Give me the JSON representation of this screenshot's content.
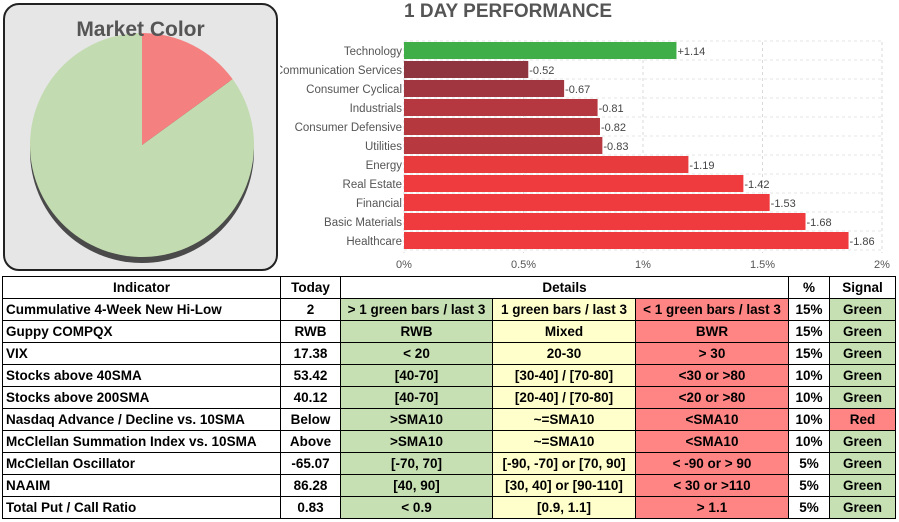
{
  "market_color": {
    "title": "Market Color",
    "red_fraction": 0.15,
    "green_fraction": 0.85,
    "colors": {
      "red": "#f48080",
      "green": "#c3dbb0",
      "shadow": "#4a4a4a"
    }
  },
  "chart_data": {
    "type": "bar",
    "orientation": "horizontal",
    "title": "1 DAY PERFORMANCE",
    "categories": [
      "Technology",
      "Communication Services",
      "Consumer Cyclical",
      "Industrials",
      "Consumer Defensive",
      "Utilities",
      "Energy",
      "Real Estate",
      "Financial",
      "Basic Materials",
      "Healthcare"
    ],
    "values": [
      1.14,
      -0.52,
      -0.67,
      -0.81,
      -0.82,
      -0.83,
      -1.19,
      -1.42,
      -1.53,
      -1.68,
      -1.86
    ],
    "labels": [
      "+1.14",
      "-0.52",
      "-0.67",
      "-0.81",
      "-0.82",
      "-0.83",
      "-1.19",
      "-1.42",
      "-1.53",
      "-1.68",
      "-1.86"
    ],
    "xticks": [
      "0%",
      "0.5%",
      "1%",
      "1.5%",
      "2%"
    ],
    "xlim": [
      0,
      2
    ],
    "grid": true,
    "colors": {
      "positive": "#3fae49",
      "negative_light": "#ef3b3e",
      "negative_dark": "#8c3540"
    }
  },
  "table": {
    "headers": {
      "indicator": "Indicator",
      "today": "Today",
      "details": "Details",
      "pct": "%",
      "signal": "Signal"
    },
    "rows": [
      {
        "indicator": "Cummulative 4-Week New Hi-Low",
        "today": "2",
        "green": "> 1 green bars / last 3",
        "yellow": "1 green bars / last 3",
        "red": "< 1 green bars / last 3",
        "pct": "15%",
        "signal": "Green"
      },
      {
        "indicator": "Guppy COMPQX",
        "today": "RWB",
        "green": "RWB",
        "yellow": "Mixed",
        "red": "BWR",
        "pct": "15%",
        "signal": "Green"
      },
      {
        "indicator": "VIX",
        "today": "17.38",
        "green": "< 20",
        "yellow": "20-30",
        "red": "> 30",
        "pct": "15%",
        "signal": "Green"
      },
      {
        "indicator": "Stocks above 40SMA",
        "today": "53.42",
        "green": "[40-70]",
        "yellow": "[30-40] / [70-80]",
        "red": "<30 or >80",
        "pct": "10%",
        "signal": "Green"
      },
      {
        "indicator": "Stocks above 200SMA",
        "today": "40.12",
        "green": "[40-70]",
        "yellow": "[20-40] / [70-80]",
        "red": "<20 or >80",
        "pct": "10%",
        "signal": "Green"
      },
      {
        "indicator": "Nasdaq Advance / Decline vs. 10SMA",
        "today": "Below",
        "green": ">SMA10",
        "yellow": "~=SMA10",
        "red": "<SMA10",
        "pct": "10%",
        "signal": "Red"
      },
      {
        "indicator": "McClellan Summation Index vs. 10SMA",
        "today": "Above",
        "green": ">SMA10",
        "yellow": "~=SMA10",
        "red": "<SMA10",
        "pct": "10%",
        "signal": "Green"
      },
      {
        "indicator": "McClellan Oscillator",
        "today": "-65.07",
        "green": "[-70,  70]",
        "yellow": "[-90, -70] or [70, 90]",
        "red": "< -90 or > 90",
        "pct": "5%",
        "signal": "Green"
      },
      {
        "indicator": "NAAIM",
        "today": "86.28",
        "green": "[40, 90]",
        "yellow": "[30, 40] or [90-110]",
        "red": "< 30 or >110",
        "pct": "5%",
        "signal": "Green"
      },
      {
        "indicator": "Total Put / Call Ratio",
        "today": "0.83",
        "green": "< 0.9",
        "yellow": "[0.9, 1.1]",
        "red": "> 1.1",
        "pct": "5%",
        "signal": "Green"
      }
    ]
  }
}
